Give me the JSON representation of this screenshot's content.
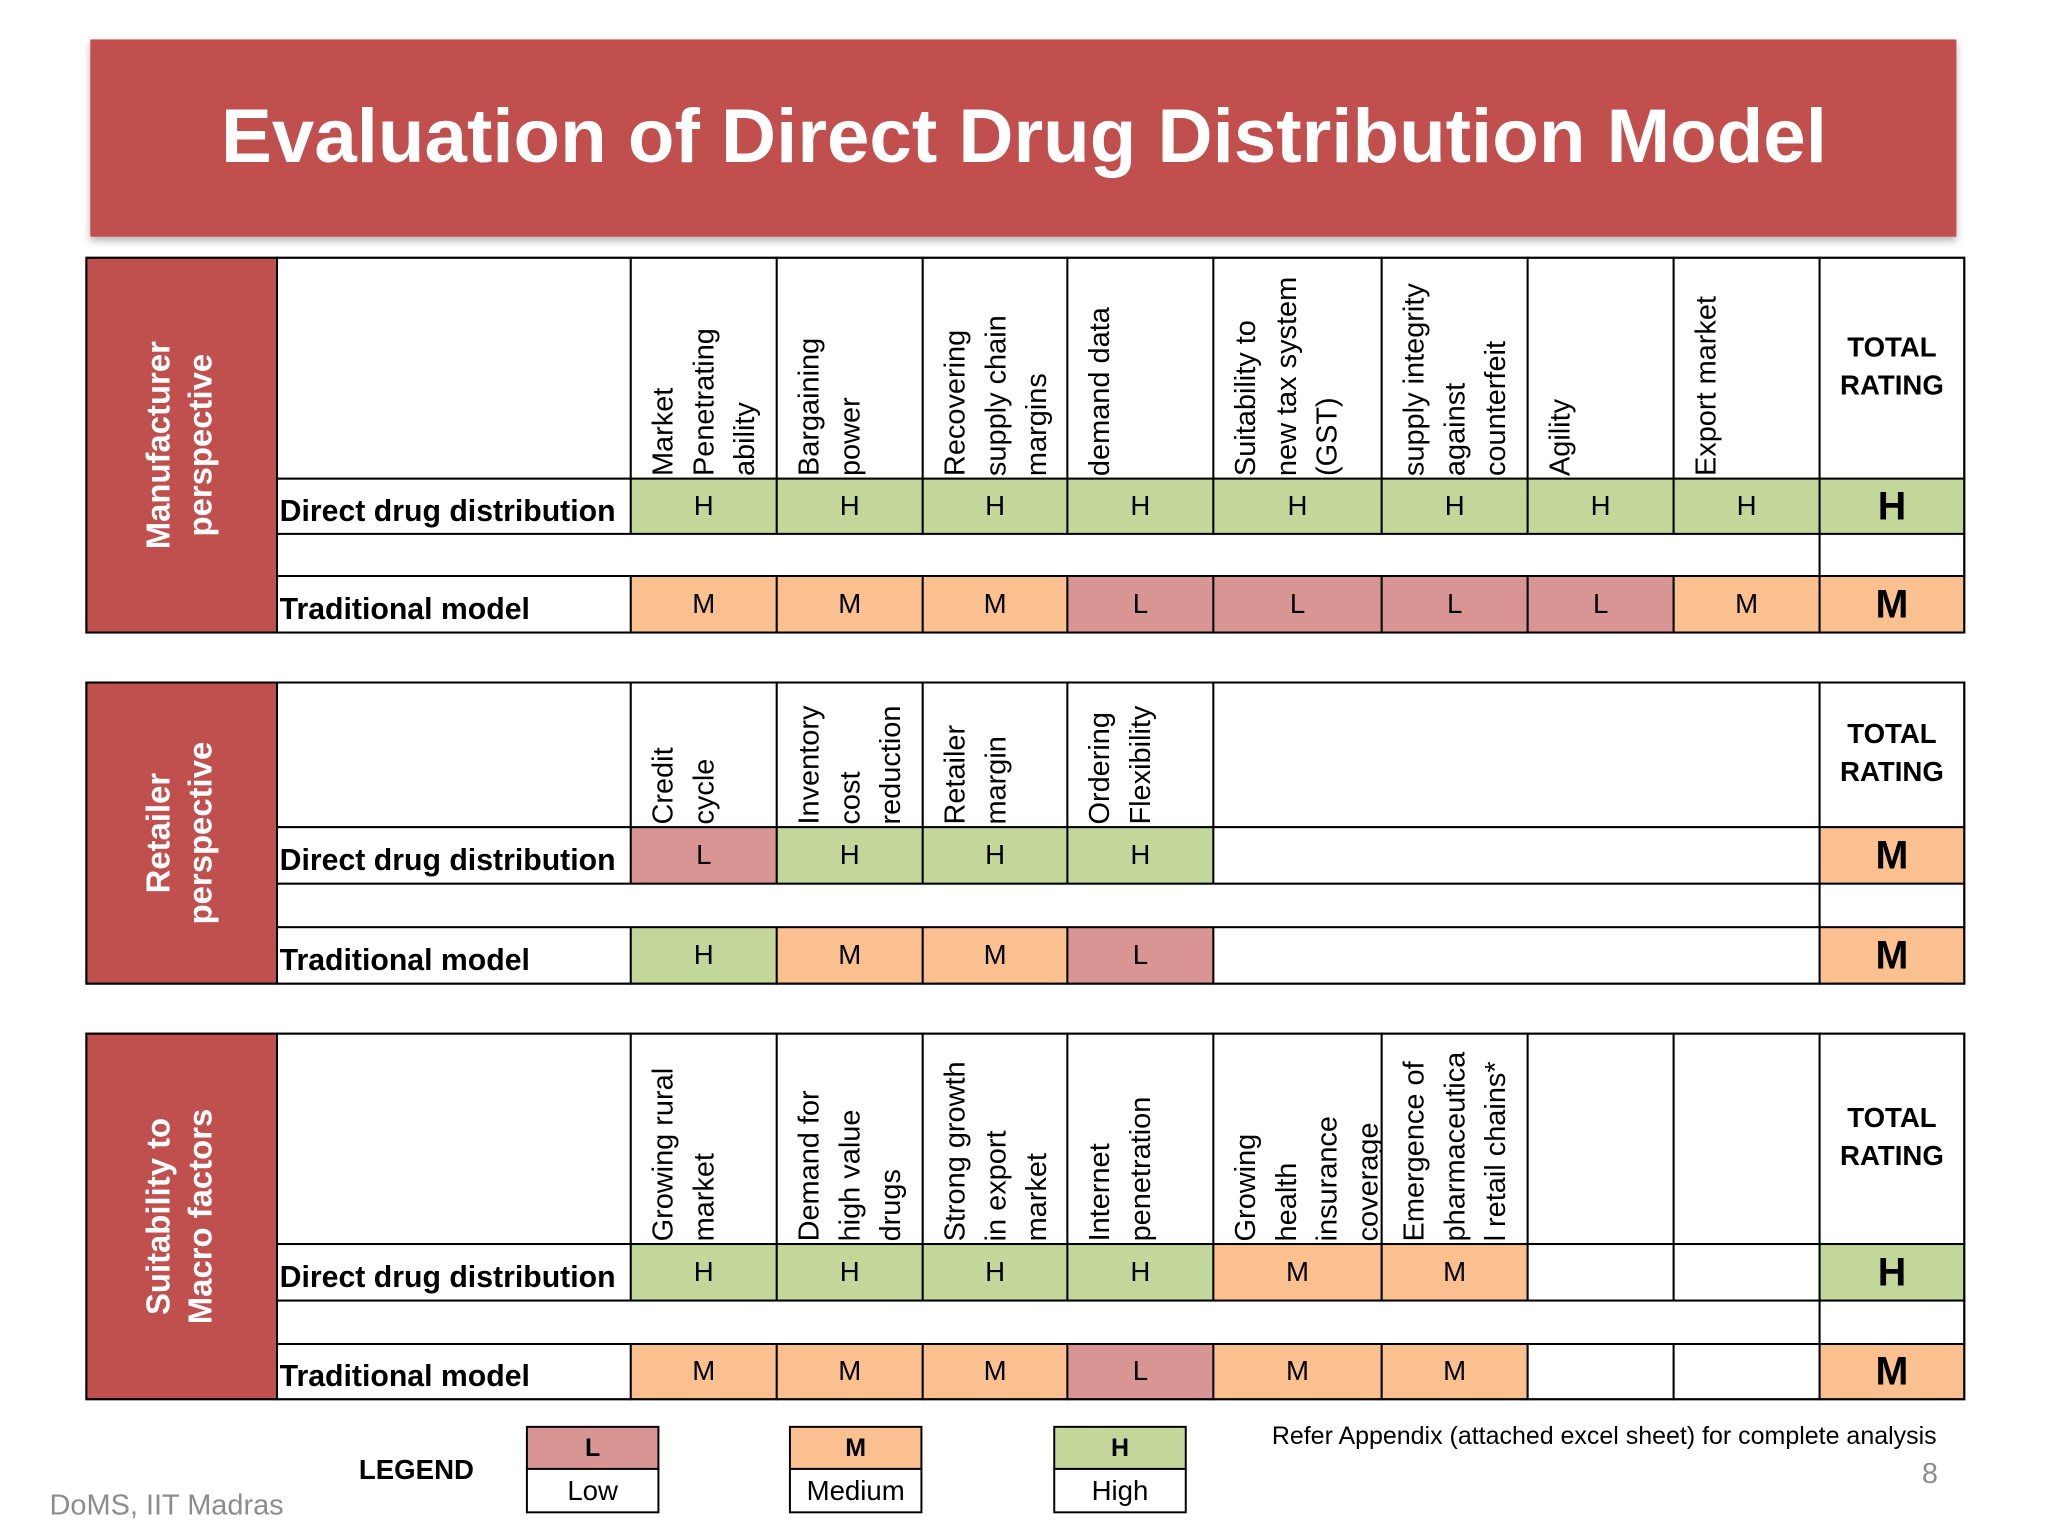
{
  "title": "Evaluation of Direct Drug Distribution Model",
  "sections": [
    {
      "label": [
        "Manufacturer",
        "perspective"
      ],
      "columns": [
        [
          "Market",
          "Penetrating",
          "ability"
        ],
        [
          "Bargaining",
          "power"
        ],
        [
          "Recovering",
          "supply chain",
          "margins"
        ],
        [
          "demand data"
        ],
        [
          "Suitability to",
          "new tax system",
          "(GST)"
        ],
        [
          "supply integrity",
          "against",
          "counterfeit"
        ],
        [
          "Agility"
        ],
        [
          "Export market"
        ]
      ],
      "total_header": [
        "TOTAL",
        "RATING"
      ],
      "rows": [
        {
          "name": "Direct drug distribution",
          "ratings": [
            "H",
            "H",
            "H",
            "H",
            "H",
            "H",
            "H",
            "H"
          ],
          "total": "H"
        },
        {
          "name": "Traditional model",
          "ratings": [
            "M",
            "M",
            "M",
            "L",
            "L",
            "L",
            "L",
            "M"
          ],
          "total": "M"
        }
      ]
    },
    {
      "label": [
        "Retailer",
        "perspective"
      ],
      "columns": [
        [
          "Credit",
          "cycle"
        ],
        [
          "Inventory",
          "cost",
          "reduction"
        ],
        [
          "Retailer",
          "margin"
        ],
        [
          "Ordering",
          "Flexibility"
        ]
      ],
      "total_header": [
        "TOTAL",
        "RATING"
      ],
      "rows": [
        {
          "name": "Direct drug distribution",
          "ratings": [
            "L",
            "H",
            "H",
            "H"
          ],
          "total": "M"
        },
        {
          "name": "Traditional model",
          "ratings": [
            "H",
            "M",
            "M",
            "L"
          ],
          "total": "M"
        }
      ]
    },
    {
      "label": [
        "Suitability to",
        "Macro factors"
      ],
      "columns": [
        [
          "Growing rural",
          "market"
        ],
        [
          "Demand for",
          "high value",
          "drugs"
        ],
        [
          "Strong growth",
          "in export",
          "market"
        ],
        [
          "Internet",
          "penetration"
        ],
        [
          "Growing",
          "health",
          "insurance",
          "coverage"
        ],
        [
          "Emergence of",
          "pharmaceutica",
          "l retail chains*"
        ]
      ],
      "total_header": [
        "TOTAL",
        "RATING"
      ],
      "rows": [
        {
          "name": "Direct drug distribution",
          "ratings": [
            "H",
            "H",
            "H",
            "H",
            "M",
            "M"
          ],
          "total": "H"
        },
        {
          "name": "Traditional model",
          "ratings": [
            "M",
            "M",
            "M",
            "L",
            "M",
            "M"
          ],
          "total": "M"
        }
      ]
    }
  ],
  "legend": {
    "title": "LEGEND",
    "items": [
      {
        "code": "L",
        "label": "Low",
        "color": "#d99594"
      },
      {
        "code": "M",
        "label": "Medium",
        "color": "#fac090"
      },
      {
        "code": "H",
        "label": "High",
        "color": "#c4d79b"
      }
    ]
  },
  "note": "Refer Appendix (attached excel sheet) for complete analysis",
  "page_number": "8",
  "footer": "DoMS, IIT Madras"
}
